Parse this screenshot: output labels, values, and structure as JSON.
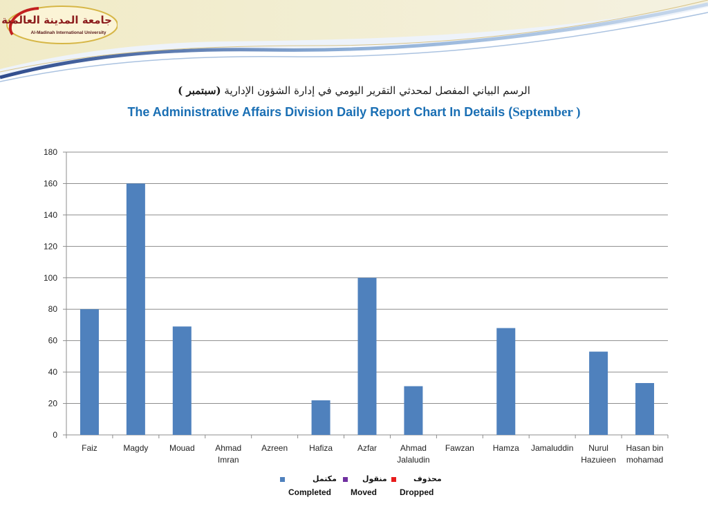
{
  "logo": {
    "name_ar": "جامعة المدينة العالمية",
    "name_en": "Al-Madinah International University"
  },
  "title": {
    "ar_main": "الرسم البياني المفصل لمحدثي التقرير اليومي في إدارة الشؤون الإدارية",
    "ar_month": "(سبتمبر )",
    "en_main": "The Administrative Affairs Division Daily Report Chart In Details (",
    "en_month": "September )"
  },
  "colors": {
    "completed": "#4f81bd",
    "moved": "#7030a0",
    "dropped": "#e81c1c",
    "title_en": "#1a6fb4",
    "grid": "#8c8c8c"
  },
  "chart_data": {
    "type": "bar",
    "categories": [
      "Faiz",
      "Magdy",
      "Mouad",
      "Ahmad Imran",
      "Azreen",
      "Hafiza",
      "Azfar",
      "Ahmad Jalaludin",
      "Fawzan",
      "Hamza",
      "Jamaluddin",
      "Nurul Hazuieen",
      "Hasan bin mohamad"
    ],
    "category_lines": [
      [
        "Faiz"
      ],
      [
        "Magdy"
      ],
      [
        "Mouad"
      ],
      [
        "Ahmad",
        "Imran"
      ],
      [
        "Azreen"
      ],
      [
        "Hafiza"
      ],
      [
        "Azfar"
      ],
      [
        "Ahmad",
        "Jalaludin"
      ],
      [
        "Fawzan"
      ],
      [
        "Hamza"
      ],
      [
        "Jamaluddin"
      ],
      [
        "Nurul",
        "Hazuieen"
      ],
      [
        "Hasan bin",
        "mohamad"
      ]
    ],
    "series": [
      {
        "name": "Completed",
        "name_ar": "مكتمل",
        "color": "#4f81bd",
        "values": [
          80,
          160,
          69,
          0,
          0,
          22,
          100,
          31,
          0,
          68,
          0,
          53,
          33
        ]
      },
      {
        "name": "Moved",
        "name_ar": "منقول",
        "color": "#7030a0",
        "values": [
          0,
          0,
          0,
          0,
          0,
          0,
          0,
          0,
          0,
          0,
          0,
          0,
          0
        ]
      },
      {
        "name": "Dropped",
        "name_ar": "محذوف",
        "color": "#e81c1c",
        "values": [
          0,
          0,
          0,
          0,
          0,
          0,
          0,
          0,
          0,
          0,
          0,
          0,
          0
        ]
      }
    ],
    "ylim": [
      0,
      180
    ],
    "yticks": [
      0,
      20,
      40,
      60,
      80,
      100,
      120,
      140,
      160,
      180
    ],
    "grid": true,
    "legend_position": "bottom"
  }
}
